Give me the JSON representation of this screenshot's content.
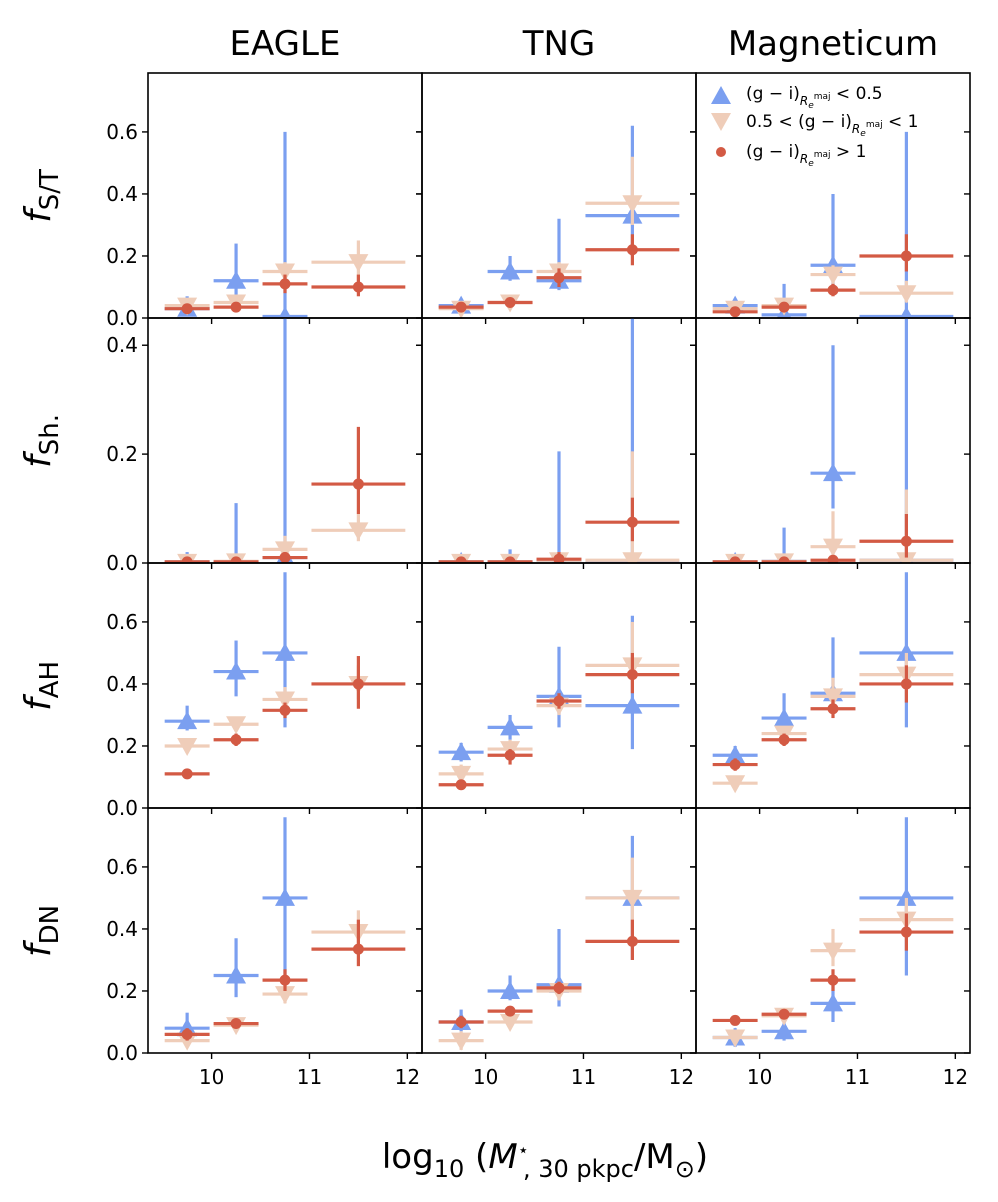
{
  "columns": [
    "EAGLE",
    "TNG",
    "Magneticum"
  ],
  "row_labels": [
    {
      "base": "f",
      "sub": "S/T"
    },
    {
      "base": "f",
      "sub": "Sh."
    },
    {
      "base": "f",
      "sub": "AH"
    },
    {
      "base": "f",
      "sub": "DN"
    }
  ],
  "xlabel": {
    "pre": "log",
    "pre_sub": "10",
    "open": " (",
    "var": "M",
    "var_sup": "⋆",
    "var_sub": ", 30 pkpc",
    "slash": "/M",
    "sun_sub": "⊙",
    "close": ")"
  },
  "legend": [
    {
      "pre": "(g − i)",
      "sub": "R",
      "sub2": "e",
      "sup2": "maj",
      "post": " < 0.5"
    },
    {
      "pre": "0.5 < (g − i)",
      "sub": "R",
      "sub2": "e",
      "sup2": "maj",
      "post": " < 1"
    },
    {
      "pre": "(g − i)",
      "sub": "R",
      "sub2": "e",
      "sup2": "maj",
      "post": " > 1"
    }
  ],
  "chart_data": {
    "type": "scatter",
    "xlim": [
      9.35,
      12.15
    ],
    "xticks": [
      10,
      11,
      12
    ],
    "x_bins": [
      [
        9.5,
        10.0
      ],
      [
        10.0,
        10.5
      ],
      [
        10.5,
        11.0
      ],
      [
        11.0,
        12.0
      ]
    ],
    "series_styles": [
      {
        "name": "(g−i) < 0.5",
        "color": "#7b9ff0",
        "marker": "triangle-up"
      },
      {
        "name": "0.5 < (g−i) < 1",
        "color": "#efcdb9",
        "marker": "triangle-down"
      },
      {
        "name": "(g−i) > 1",
        "color": "#d35a44",
        "marker": "circle"
      }
    ],
    "rows": [
      {
        "ylim": [
          0,
          0.79
        ],
        "yticks": [
          {
            "v": 0,
            "l": "0.0"
          },
          {
            "v": 0.2,
            "l": "0.2"
          },
          {
            "v": 0.4,
            "l": "0.4"
          },
          {
            "v": 0.6,
            "l": "0.6"
          }
        ],
        "panels": [
          [
            [
              [
                0.03,
                0.005,
                0.07
              ],
              [
                0.12,
                0.06,
                0.24
              ],
              [
                0.005,
                0.0,
                0.6
              ],
              [
                null,
                null,
                null
              ]
            ],
            [
              [
                0.04,
                0.02,
                0.06
              ],
              [
                0.05,
                0.03,
                0.07
              ],
              [
                0.15,
                0.12,
                0.18
              ],
              [
                0.18,
                0.12,
                0.25
              ]
            ],
            [
              [
                0.03,
                0.02,
                0.04
              ],
              [
                0.035,
                0.025,
                0.045
              ],
              [
                0.11,
                0.08,
                0.14
              ],
              [
                0.1,
                0.07,
                0.14
              ]
            ]
          ],
          [
            [
              [
                0.04,
                0.02,
                0.06
              ],
              [
                0.15,
                0.12,
                0.2
              ],
              [
                0.12,
                0.09,
                0.32
              ],
              [
                0.33,
                0.2,
                0.62
              ]
            ],
            [
              [
                0.03,
                0.02,
                0.05
              ],
              [
                0.05,
                0.03,
                0.07
              ],
              [
                0.15,
                0.12,
                0.18
              ],
              [
                0.37,
                0.3,
                0.52
              ]
            ],
            [
              [
                0.035,
                0.025,
                0.045
              ],
              [
                0.05,
                0.04,
                0.06
              ],
              [
                0.13,
                0.1,
                0.16
              ],
              [
                0.22,
                0.17,
                0.27
              ]
            ]
          ],
          [
            [
              [
                0.04,
                0.01,
                0.06
              ],
              [
                0.01,
                0.0,
                0.11
              ],
              [
                0.17,
                0.1,
                0.4
              ],
              [
                0.005,
                0.0,
                0.6
              ]
            ],
            [
              [
                0.03,
                0.02,
                0.05
              ],
              [
                0.04,
                0.02,
                0.06
              ],
              [
                0.14,
                0.11,
                0.17
              ],
              [
                0.08,
                0.05,
                0.12
              ]
            ],
            [
              [
                0.02,
                0.01,
                0.03
              ],
              [
                0.035,
                0.025,
                0.045
              ],
              [
                0.09,
                0.07,
                0.11
              ],
              [
                0.2,
                0.15,
                0.27
              ]
            ]
          ]
        ]
      },
      {
        "ylim": [
          0,
          0.45
        ],
        "yticks": [
          {
            "v": 0,
            "l": "0.0"
          },
          {
            "v": 0.2,
            "l": "0.2"
          },
          {
            "v": 0.4,
            "l": "0.4"
          }
        ],
        "panels": [
          [
            [
              [
                0.002,
                0.0,
                0.02
              ],
              [
                0.002,
                0.0,
                0.11
              ],
              [
                0.01,
                0.0,
                0.45
              ],
              [
                null,
                null,
                null
              ]
            ],
            [
              [
                0.002,
                0.0,
                0.01
              ],
              [
                0.003,
                0.0,
                0.01
              ],
              [
                0.025,
                0.01,
                0.05
              ],
              [
                0.06,
                0.04,
                0.09
              ]
            ],
            [
              [
                0.002,
                0.0,
                0.005
              ],
              [
                0.002,
                0.0,
                0.005
              ],
              [
                0.01,
                0.005,
                0.02
              ],
              [
                0.145,
                0.09,
                0.25
              ]
            ]
          ],
          [
            [
              [
                0.002,
                0.0,
                0.01
              ],
              [
                0.002,
                0.0,
                0.025
              ],
              [
                0.005,
                0.0,
                0.205
              ],
              [
                0.002,
                0.0,
                0.45
              ]
            ],
            [
              [
                0.002,
                0.0,
                0.01
              ],
              [
                0.002,
                0.0,
                0.01
              ],
              [
                0.005,
                0.0,
                0.02
              ],
              [
                0.005,
                0.0,
                0.205
              ]
            ],
            [
              [
                0.002,
                0.0,
                0.005
              ],
              [
                0.002,
                0.0,
                0.005
              ],
              [
                0.007,
                0.0,
                0.02
              ],
              [
                0.075,
                0.04,
                0.12
              ]
            ]
          ],
          [
            [
              [
                0.002,
                0.0,
                0.01
              ],
              [
                0.003,
                0.0,
                0.065
              ],
              [
                0.165,
                0.1,
                0.4
              ],
              [
                0.005,
                0.0,
                0.45
              ]
            ],
            [
              [
                0.002,
                0.0,
                0.01
              ],
              [
                0.003,
                0.0,
                0.01
              ],
              [
                0.03,
                0.01,
                0.095
              ],
              [
                0.005,
                0.0,
                0.135
              ]
            ],
            [
              [
                0.002,
                0.0,
                0.005
              ],
              [
                0.002,
                0.0,
                0.005
              ],
              [
                0.005,
                0.0,
                0.01
              ],
              [
                0.04,
                0.01,
                0.09
              ]
            ]
          ]
        ]
      },
      {
        "ylim": [
          0,
          0.79
        ],
        "yticks": [
          {
            "v": 0,
            "l": "0.0"
          },
          {
            "v": 0.2,
            "l": "0.2"
          },
          {
            "v": 0.4,
            "l": "0.4"
          },
          {
            "v": 0.6,
            "l": "0.6"
          }
        ],
        "panels": [
          [
            [
              [
                0.28,
                0.25,
                0.33
              ],
              [
                0.44,
                0.36,
                0.54
              ],
              [
                0.5,
                0.26,
                0.76
              ],
              [
                null,
                null,
                null
              ]
            ],
            [
              [
                0.2,
                0.18,
                0.22
              ],
              [
                0.27,
                0.25,
                0.29
              ],
              [
                0.35,
                0.31,
                0.39
              ],
              [
                0.4,
                0.35,
                0.46
              ]
            ],
            [
              [
                0.11,
                0.1,
                0.12
              ],
              [
                0.22,
                0.2,
                0.24
              ],
              [
                0.315,
                0.29,
                0.34
              ],
              [
                0.4,
                0.32,
                0.49
              ]
            ]
          ],
          [
            [
              [
                0.18,
                0.15,
                0.21
              ],
              [
                0.26,
                0.22,
                0.3
              ],
              [
                0.36,
                0.26,
                0.52
              ],
              [
                0.33,
                0.19,
                0.62
              ]
            ],
            [
              [
                0.11,
                0.08,
                0.14
              ],
              [
                0.19,
                0.16,
                0.22
              ],
              [
                0.33,
                0.3,
                0.36
              ],
              [
                0.46,
                0.4,
                0.6
              ]
            ],
            [
              [
                0.075,
                0.065,
                0.085
              ],
              [
                0.17,
                0.14,
                0.19
              ],
              [
                0.345,
                0.32,
                0.37
              ],
              [
                0.43,
                0.37,
                0.5
              ]
            ]
          ],
          [
            [
              [
                0.17,
                0.14,
                0.2
              ],
              [
                0.29,
                0.25,
                0.37
              ],
              [
                0.37,
                0.31,
                0.55
              ],
              [
                0.5,
                0.26,
                0.76
              ]
            ],
            [
              [
                0.08,
                0.06,
                0.1
              ],
              [
                0.24,
                0.22,
                0.26
              ],
              [
                0.36,
                0.33,
                0.42
              ],
              [
                0.43,
                0.36,
                0.5
              ]
            ],
            [
              [
                0.14,
                0.12,
                0.16
              ],
              [
                0.22,
                0.2,
                0.24
              ],
              [
                0.32,
                0.29,
                0.35
              ],
              [
                0.4,
                0.34,
                0.46
              ]
            ]
          ]
        ]
      },
      {
        "ylim": [
          0,
          0.79
        ],
        "yticks": [
          {
            "v": 0,
            "l": "0.0"
          },
          {
            "v": 0.2,
            "l": "0.2"
          },
          {
            "v": 0.4,
            "l": "0.4"
          },
          {
            "v": 0.6,
            "l": "0.6"
          }
        ],
        "panels": [
          [
            [
              [
                0.08,
                0.05,
                0.13
              ],
              [
                0.25,
                0.18,
                0.37
              ],
              [
                0.5,
                0.22,
                0.76
              ],
              [
                null,
                null,
                null
              ]
            ],
            [
              [
                0.04,
                0.02,
                0.06
              ],
              [
                0.09,
                0.07,
                0.11
              ],
              [
                0.19,
                0.16,
                0.22
              ],
              [
                0.39,
                0.34,
                0.46
              ]
            ],
            [
              [
                0.06,
                0.04,
                0.08
              ],
              [
                0.095,
                0.08,
                0.11
              ],
              [
                0.235,
                0.2,
                0.27
              ],
              [
                0.335,
                0.28,
                0.43
              ]
            ]
          ],
          [
            [
              [
                0.1,
                0.07,
                0.14
              ],
              [
                0.2,
                0.17,
                0.25
              ],
              [
                0.22,
                0.15,
                0.4
              ],
              [
                0.5,
                0.3,
                0.7
              ]
            ],
            [
              [
                0.04,
                0.01,
                0.07
              ],
              [
                0.1,
                0.08,
                0.12
              ],
              [
                0.2,
                0.17,
                0.23
              ],
              [
                0.5,
                0.4,
                0.63
              ]
            ],
            [
              [
                0.1,
                0.08,
                0.12
              ],
              [
                0.135,
                0.12,
                0.15
              ],
              [
                0.21,
                0.19,
                0.23
              ],
              [
                0.36,
                0.3,
                0.43
              ]
            ]
          ],
          [
            [
              [
                0.05,
                0.02,
                0.08
              ],
              [
                0.07,
                0.04,
                0.1
              ],
              [
                0.16,
                0.1,
                0.22
              ],
              [
                0.5,
                0.25,
                0.76
              ]
            ],
            [
              [
                0.05,
                0.03,
                0.07
              ],
              [
                0.12,
                0.1,
                0.14
              ],
              [
                0.33,
                0.28,
                0.4
              ],
              [
                0.43,
                0.36,
                0.5
              ]
            ],
            [
              [
                0.105,
                0.09,
                0.12
              ],
              [
                0.125,
                0.11,
                0.14
              ],
              [
                0.235,
                0.2,
                0.27
              ],
              [
                0.39,
                0.33,
                0.45
              ]
            ]
          ]
        ]
      }
    ]
  }
}
